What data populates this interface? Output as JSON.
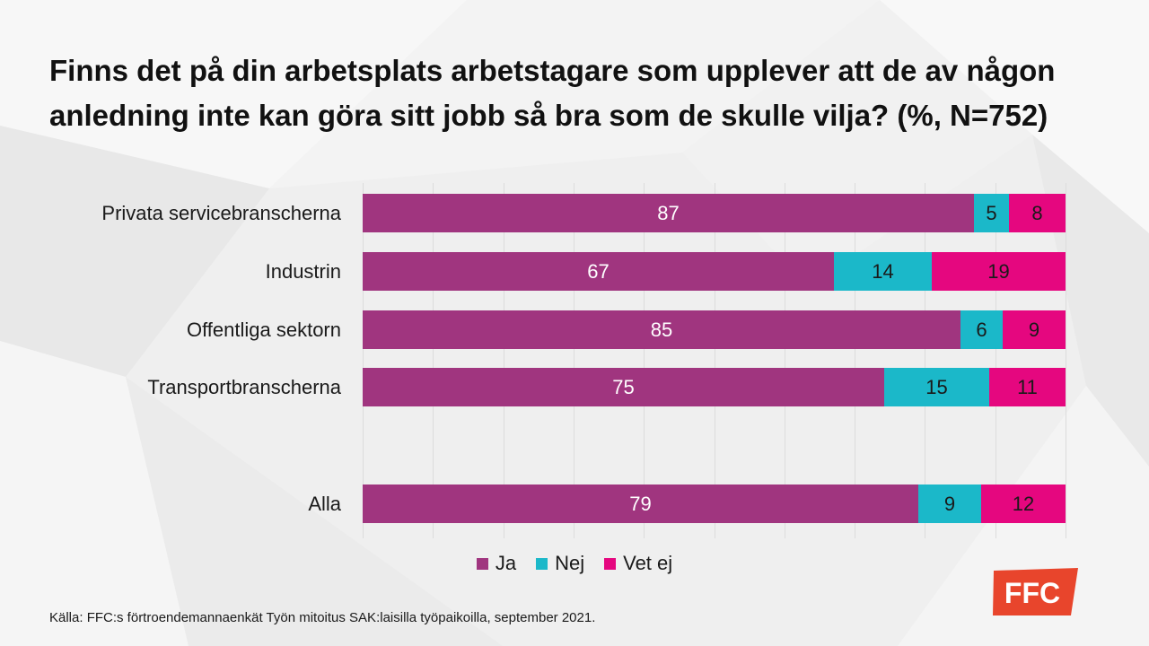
{
  "colors": {
    "background": "#efefef",
    "text": "#1a1a1a",
    "gridline": "#dcdcdc",
    "logo": "#e8452c",
    "logo_text": "#ffffff"
  },
  "chart_data": {
    "type": "bar",
    "orientation": "horizontal",
    "stacked": "percent",
    "title": "Finns det på din arbetsplats arbetstagare som upplever att de av någon anledning inte kan göra sitt jobb så bra som de skulle vilja? (%, N=752)",
    "xlim": [
      0,
      100
    ],
    "grid": "vertical",
    "legend": "bottom",
    "categories": [
      "Privata servicebranscherna",
      "Industrin",
      "Offentliga sektorn",
      "Transportbranscherna",
      "Alla"
    ],
    "series": [
      {
        "name": "Ja",
        "color": "#a0357f",
        "label_color": "#ffffff",
        "values": [
          87,
          67,
          85,
          75,
          79
        ]
      },
      {
        "name": "Nej",
        "color": "#1bb8c9",
        "label_color": "#1a1a1a",
        "values": [
          5,
          14,
          6,
          15,
          9
        ]
      },
      {
        "name": "Vet ej",
        "color": "#e5077f",
        "label_color": "#1a1a1a",
        "values": [
          8,
          19,
          9,
          11,
          12
        ]
      }
    ]
  },
  "source": "Källa: FFC:s förtroendemannaenkät Työn mitoitus SAK:laisilla työpaikoilla, september 2021.",
  "logo": {
    "text": "FFC"
  }
}
